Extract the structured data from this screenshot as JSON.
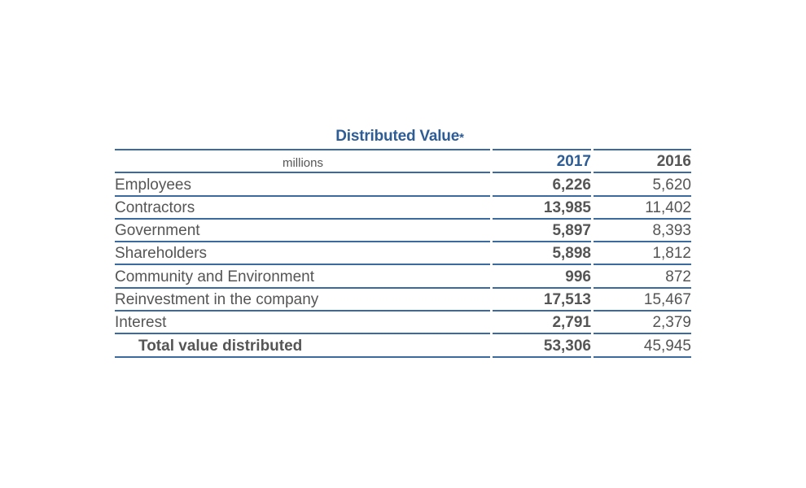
{
  "table": {
    "title": "Distributed Value",
    "title_marker": "*",
    "units": "millions",
    "columns": [
      "2017",
      "2016"
    ],
    "rows": [
      {
        "label": "Employees",
        "v2017": "6,226",
        "v2016": "5,620"
      },
      {
        "label": "Contractors",
        "v2017": "13,985",
        "v2016": "11,402"
      },
      {
        "label": "Government",
        "v2017": "5,897",
        "v2016": "8,393"
      },
      {
        "label": "Shareholders",
        "v2017": "5,898",
        "v2016": "1,812"
      },
      {
        "label": "Community and Environment",
        "v2017": "996",
        "v2016": "872"
      },
      {
        "label": "Reinvestment in the company",
        "v2017": "17,513",
        "v2016": "15,467"
      },
      {
        "label": "Interest",
        "v2017": "2,791",
        "v2016": "2,379"
      }
    ],
    "total": {
      "label": "Total value distributed",
      "v2017": "53,306",
      "v2016": "45,945"
    }
  },
  "colors": {
    "accent": "#2e5d96",
    "text": "#555555",
    "rule": "#3a6aa0"
  }
}
